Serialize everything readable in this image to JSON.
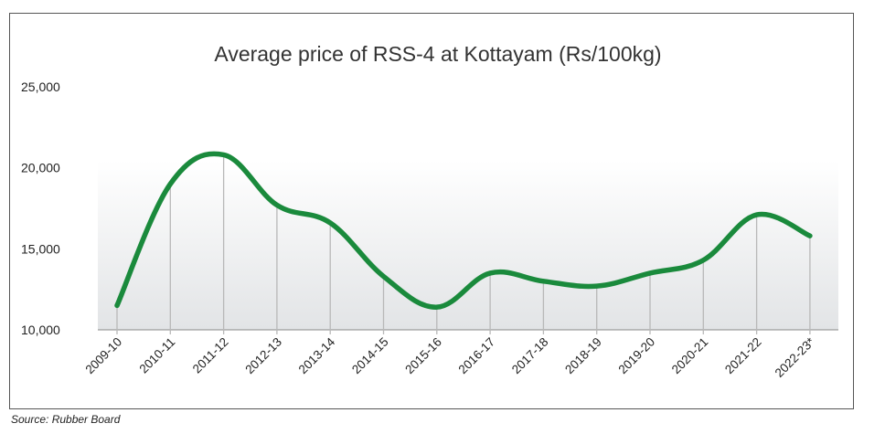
{
  "source": "Source:  Rubber  Board",
  "colors": {
    "line": "#1a8a3c",
    "drop_line": "#b8b8b8",
    "plot_band": "#e6e8ea",
    "axis": "#888888",
    "text": "#222222"
  },
  "chart_data": {
    "type": "line",
    "title": "Average price of RSS-4 at Kottayam (Rs/100kg)",
    "xlabel": "",
    "ylabel": "",
    "categories": [
      "2009-10",
      "2010-11",
      "2011-12",
      "2012-13",
      "2013-14",
      "2014-15",
      "2015-16",
      "2016-17",
      "2017-18",
      "2018-19",
      "2019-20",
      "2020-21",
      "2021-22",
      "2022-23*"
    ],
    "series": [
      {
        "values": [
          11500,
          19000,
          20800,
          17700,
          16600,
          13300,
          11400,
          13500,
          13000,
          12700,
          13500,
          14300,
          17100,
          15800
        ]
      }
    ],
    "ylim": [
      10000,
      25000
    ],
    "yticks": [
      10000,
      15000,
      20000,
      25000
    ],
    "ytick_labels": [
      "10,000",
      "15,000",
      "20,000",
      "25,000"
    ],
    "grid": false,
    "drop_lines": true,
    "legend": "none"
  }
}
